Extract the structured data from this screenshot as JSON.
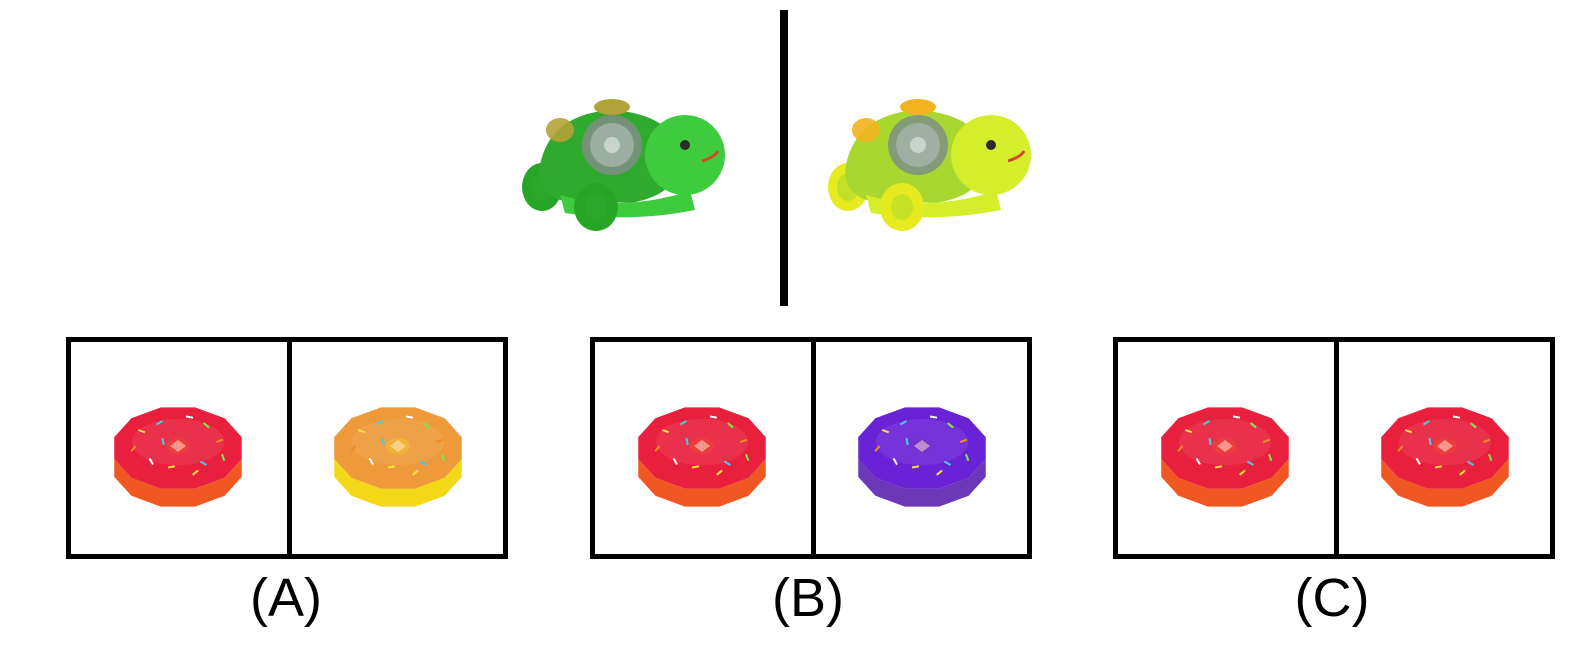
{
  "top_pair": {
    "left_icon": "turtle-toy-icon",
    "right_icon": "turtle-toy-icon",
    "left_colors": {
      "shell": "#2faa2f",
      "body": "#3ecb3e",
      "wheel": "#27a527",
      "accent": "#b2a23a"
    },
    "right_colors": {
      "shell": "#a8d830",
      "body": "#d4ee2c",
      "wheel": "#e6ea1e",
      "accent": "#f2b41e"
    }
  },
  "options": [
    {
      "label": "(A)",
      "left_donut": {
        "top": "#e8203d",
        "side": "#f05722"
      },
      "right_donut": {
        "top": "#ee9a3a",
        "side": "#f2d817"
      }
    },
    {
      "label": "(B)",
      "left_donut": {
        "top": "#e8203d",
        "side": "#f05722"
      },
      "right_donut": {
        "top": "#6a22d6",
        "side": "#6d38b8"
      }
    },
    {
      "label": "(C)",
      "left_donut": {
        "top": "#e8203d",
        "side": "#f05722"
      },
      "right_donut": {
        "top": "#e8203d",
        "side": "#f05722"
      }
    }
  ]
}
